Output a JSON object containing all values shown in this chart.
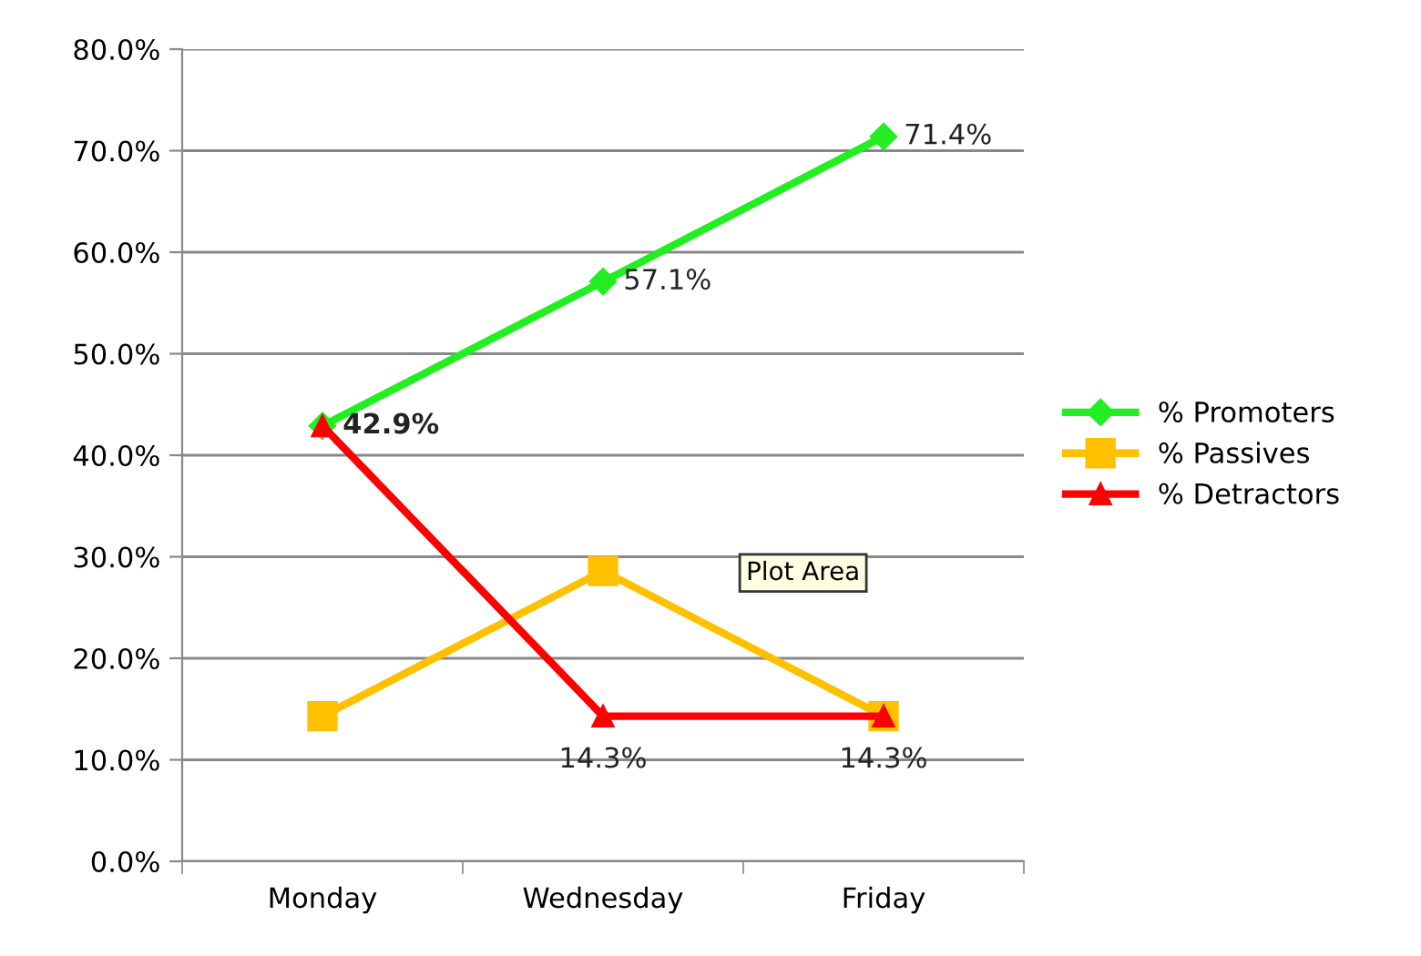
{
  "chart_data": {
    "type": "line",
    "categories": [
      "Monday",
      "Wednesday",
      "Friday"
    ],
    "series": [
      {
        "name": "% Promoters",
        "color": "#22ee22",
        "marker": "diamond",
        "values": [
          42.9,
          57.1,
          71.4
        ],
        "value_labels": [
          "42.9%",
          "57.1%",
          "71.4%"
        ]
      },
      {
        "name": "% Passives",
        "color": "#ffc000",
        "marker": "square",
        "values": [
          14.3,
          28.6,
          14.3
        ]
      },
      {
        "name": "% Detractors",
        "color": "#ff0000",
        "marker": "triangle",
        "values": [
          42.9,
          14.3,
          14.3
        ],
        "value_labels": [
          null,
          "14.3%",
          "14.3%"
        ]
      }
    ],
    "ylim": [
      0,
      80
    ],
    "yticks": [
      {
        "value": 0,
        "label": "0.0%"
      },
      {
        "value": 10,
        "label": "10.0%"
      },
      {
        "value": 20,
        "label": "20.0%"
      },
      {
        "value": 30,
        "label": "30.0%"
      },
      {
        "value": 40,
        "label": "40.0%"
      },
      {
        "value": 50,
        "label": "50.0%"
      },
      {
        "value": 60,
        "label": "60.0%"
      },
      {
        "value": 70,
        "label": "70.0%"
      },
      {
        "value": 80,
        "label": "80.0%"
      }
    ],
    "grid": "y",
    "legend": "right",
    "line_style": "solid",
    "annotations": [
      "Plot Area"
    ]
  }
}
